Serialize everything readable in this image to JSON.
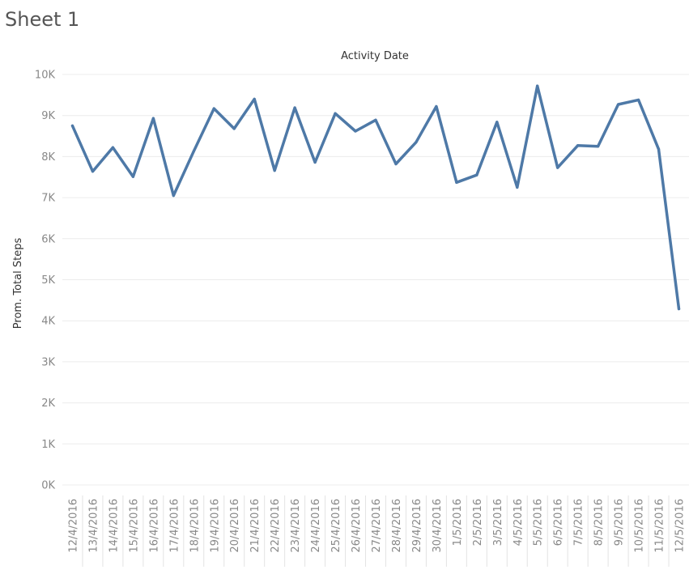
{
  "sheet": {
    "title": "Sheet 1"
  },
  "colors": {
    "series": "#4e79a7"
  },
  "chart_data": {
    "type": "line",
    "title": "",
    "top_axis_label": "Activity Date",
    "xlabel": "",
    "ylabel": "Prom. Total Steps",
    "ylim": [
      0,
      10000
    ],
    "y_ticks": [
      0,
      1000,
      2000,
      3000,
      4000,
      5000,
      6000,
      7000,
      8000,
      9000,
      10000
    ],
    "y_tick_labels": [
      "0K",
      "1K",
      "2K",
      "3K",
      "4K",
      "5K",
      "6K",
      "7K",
      "8K",
      "9K",
      "10K"
    ],
    "grid": true,
    "legend": "none",
    "categories": [
      "12/4/2016",
      "13/4/2016",
      "14/4/2016",
      "15/4/2016",
      "16/4/2016",
      "17/4/2016",
      "18/4/2016",
      "19/4/2016",
      "20/4/2016",
      "21/4/2016",
      "22/4/2016",
      "23/4/2016",
      "24/4/2016",
      "25/4/2016",
      "26/4/2016",
      "27/4/2016",
      "28/4/2016",
      "29/4/2016",
      "30/4/2016",
      "1/5/2016",
      "2/5/2016",
      "3/5/2016",
      "4/5/2016",
      "5/5/2016",
      "6/5/2016",
      "7/5/2016",
      "8/5/2016",
      "9/5/2016",
      "10/5/2016",
      "11/5/2016",
      "12/5/2016"
    ],
    "series": [
      {
        "values": [
          8750,
          7640,
          8220,
          7510,
          8930,
          7050,
          8130,
          9170,
          8680,
          9400,
          7660,
          9190,
          7860,
          9050,
          8620,
          8890,
          7820,
          8350,
          9220,
          7370,
          7550,
          8840,
          7250,
          9720,
          7730,
          8270,
          8250,
          9270,
          9380,
          8180,
          4290
        ]
      }
    ]
  }
}
